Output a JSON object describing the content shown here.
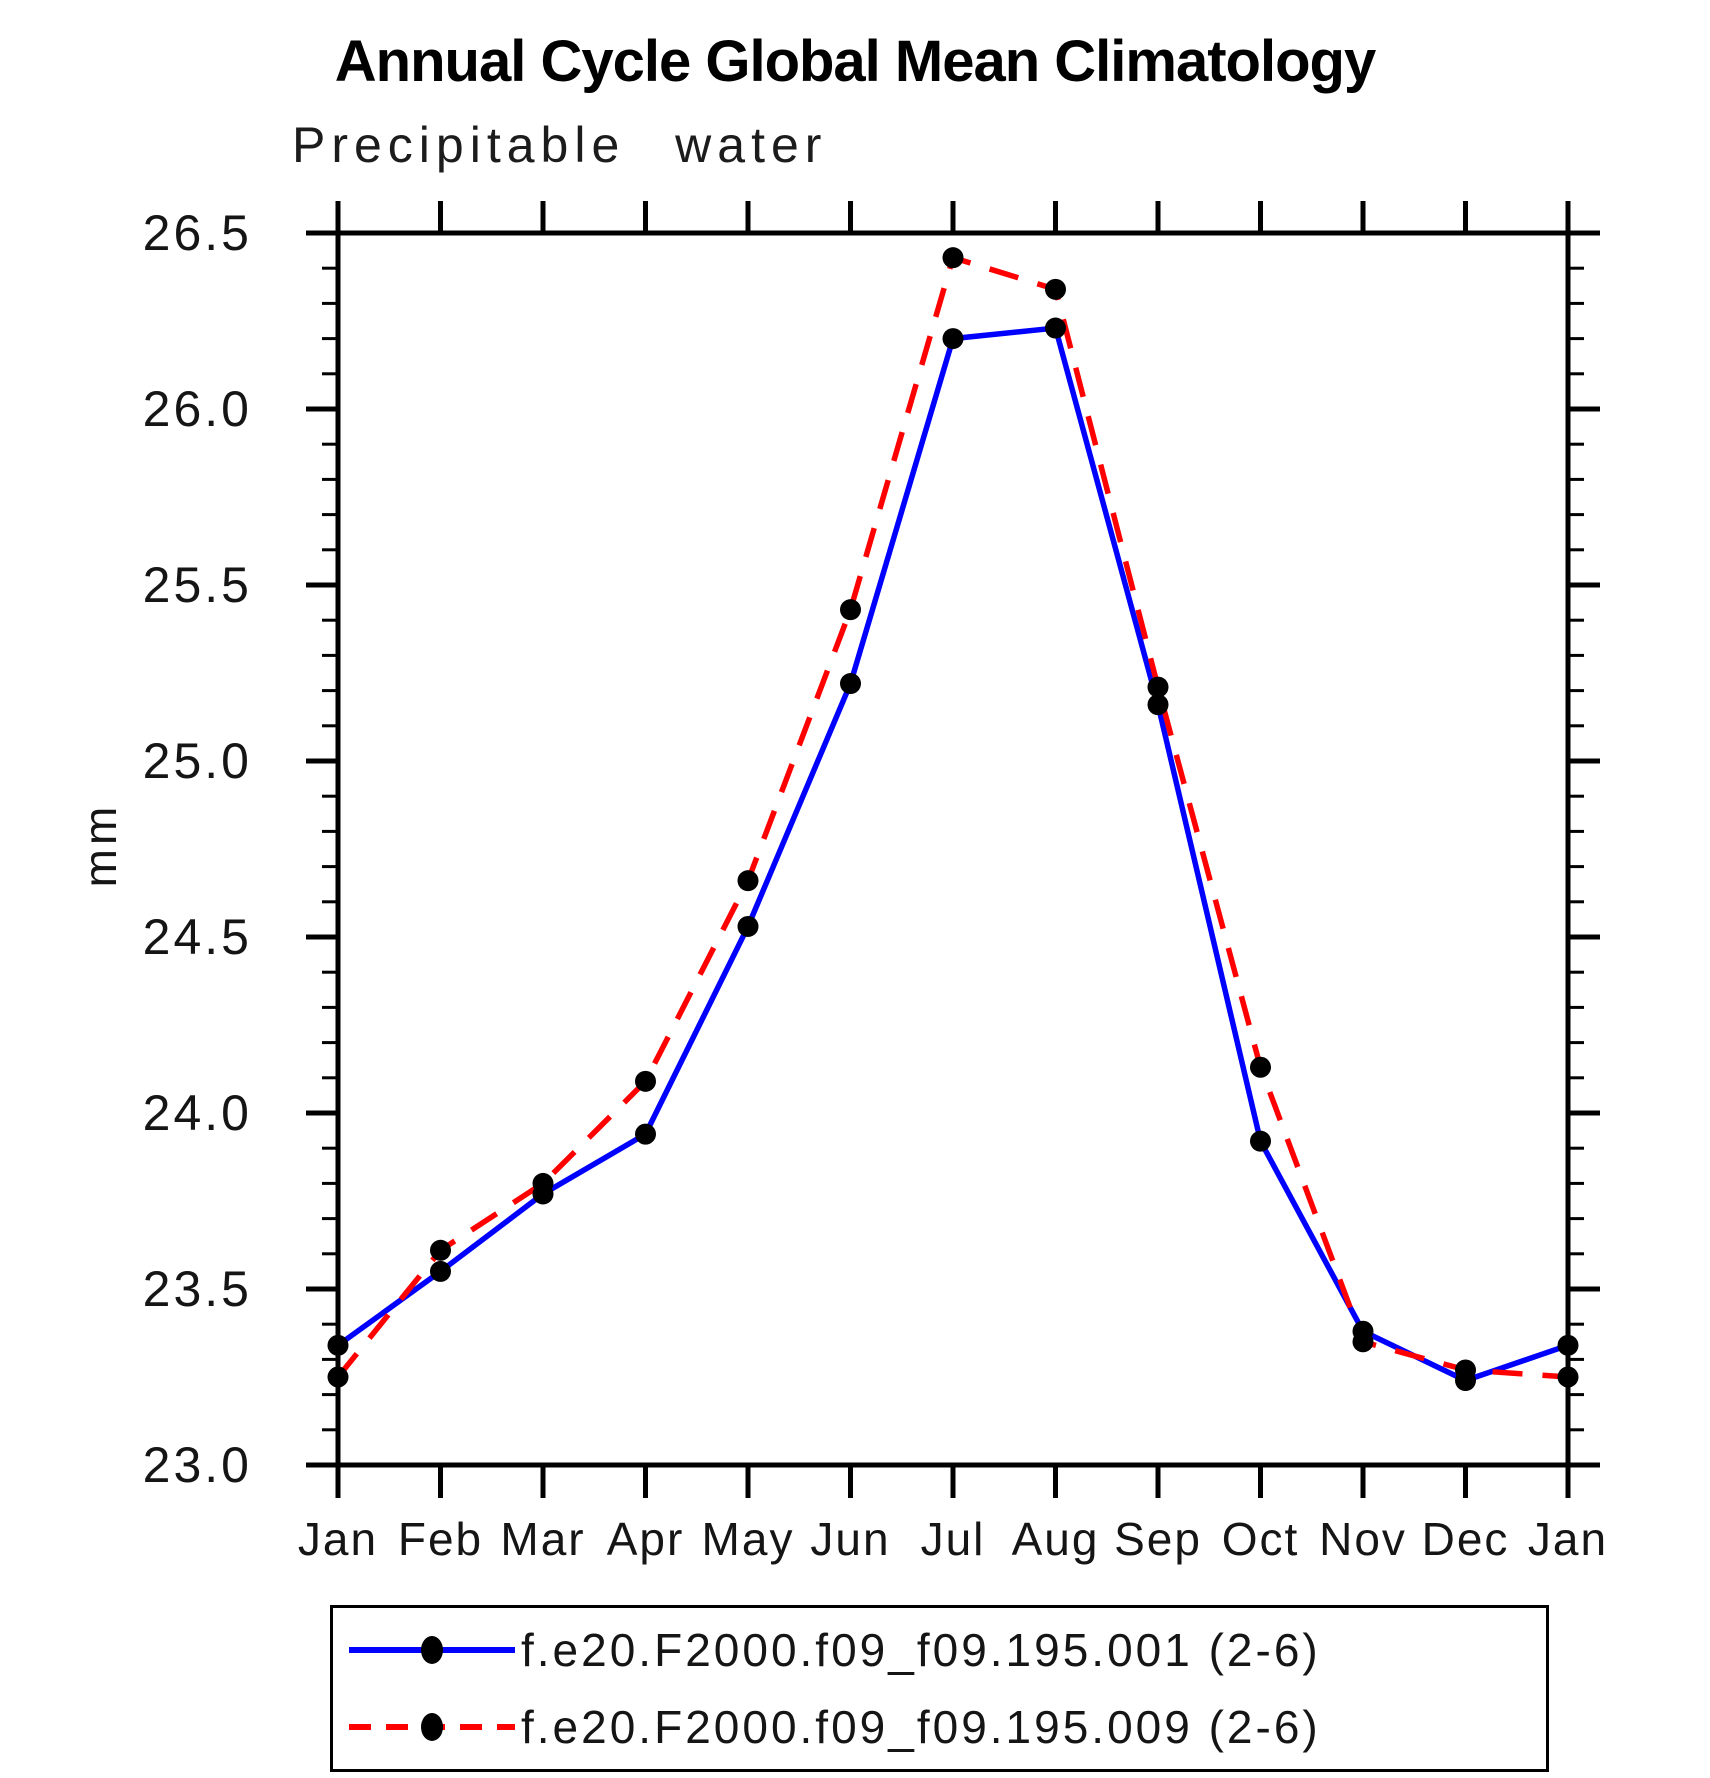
{
  "chart_data": {
    "type": "line",
    "title": "Annual Cycle Global Mean Climatology",
    "subtitle": "Precipitable water",
    "ylabel": "mm",
    "categories": [
      "Jan",
      "Feb",
      "Mar",
      "Apr",
      "May",
      "Jun",
      "Jul",
      "Aug",
      "Sep",
      "Oct",
      "Nov",
      "Dec",
      "Jan"
    ],
    "series": [
      {
        "name": "f.e20.F2000.f09_f09.195.001 (2-6)",
        "color": "#0000ff",
        "style": "solid",
        "marker": "black-dot",
        "values": [
          23.34,
          23.55,
          23.77,
          23.94,
          24.53,
          25.22,
          26.2,
          26.23,
          25.16,
          23.92,
          23.38,
          23.24,
          23.34
        ]
      },
      {
        "name": "f.e20.F2000.f09_f09.195.009 (2-6)",
        "color": "#ff0000",
        "style": "dashed",
        "marker": "black-dot",
        "values": [
          23.25,
          23.61,
          23.8,
          24.09,
          24.66,
          25.43,
          26.43,
          26.34,
          25.21,
          24.13,
          23.35,
          23.27,
          23.25
        ]
      }
    ],
    "ylim": [
      23.0,
      26.5
    ],
    "ytick_step": 0.5,
    "yminor_step": 0.1,
    "ytick_labels": [
      "26.5",
      "26.0",
      "25.5",
      "25.0",
      "24.5",
      "24.0",
      "23.5",
      "23.0"
    ],
    "grid": false,
    "legend_position": "bottom",
    "axis_color": "#000000",
    "marker_color": "#000000",
    "tick_style": "outward-all-sides"
  }
}
